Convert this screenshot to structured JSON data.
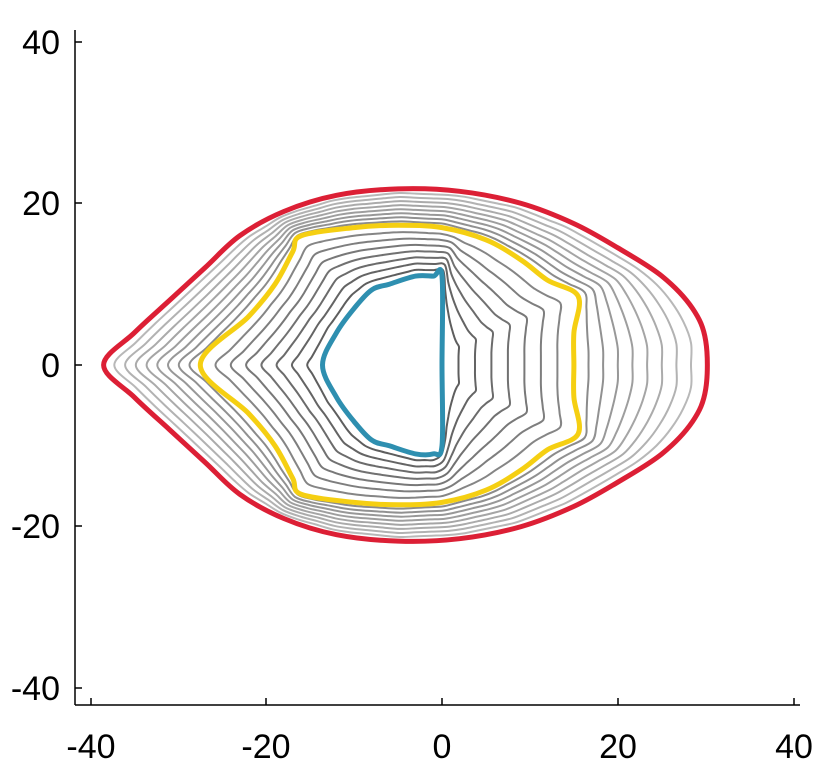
{
  "chart_data": {
    "type": "line",
    "title": "",
    "xlabel": "",
    "ylabel": "",
    "xlim": [
      -40,
      40
    ],
    "ylim": [
      -40,
      40
    ],
    "xticks": [
      -40,
      -20,
      0,
      20,
      40
    ],
    "yticks": [
      -40,
      -20,
      0,
      20,
      40
    ],
    "xtick_labels": [
      "-40",
      "-20",
      "0",
      "20",
      "40"
    ],
    "ytick_labels": [
      "-40",
      "-20",
      "0",
      "20",
      "40"
    ],
    "grid": false,
    "legend": "none",
    "highlighted_series": [
      {
        "color": "#2e8fb0",
        "points": [
          [
            0,
            11
          ],
          [
            0,
            0
          ],
          [
            0,
            -10
          ],
          [
            -1,
            -11
          ],
          [
            -3,
            -11
          ],
          [
            -6,
            -10
          ],
          [
            -8,
            -9.3
          ],
          [
            -10,
            -7
          ],
          [
            -12,
            -4
          ],
          [
            -13.6,
            0
          ],
          [
            -12,
            4
          ],
          [
            -10,
            7
          ],
          [
            -8,
            9.3
          ],
          [
            -6,
            10
          ],
          [
            -3,
            11
          ],
          [
            -1,
            11
          ],
          [
            0,
            11
          ]
        ]
      },
      {
        "color": "#f5cf12",
        "points": [
          [
            -16,
            16
          ],
          [
            -10,
            17
          ],
          [
            -5,
            17.3
          ],
          [
            0,
            17
          ],
          [
            5,
            15.5
          ],
          [
            9,
            13
          ],
          [
            12,
            10.5
          ],
          [
            15.5,
            8.5
          ],
          [
            15,
            4
          ],
          [
            15,
            0
          ],
          [
            15,
            -4
          ],
          [
            15.5,
            -8.5
          ],
          [
            12,
            -10.5
          ],
          [
            9,
            -13
          ],
          [
            5,
            -15.5
          ],
          [
            0,
            -17
          ],
          [
            -5,
            -17.3
          ],
          [
            -10,
            -17
          ],
          [
            -16,
            -16
          ],
          [
            -17,
            -14
          ],
          [
            -19,
            -10
          ],
          [
            -22,
            -6
          ],
          [
            -27.5,
            0
          ],
          [
            -22,
            6
          ],
          [
            -19,
            10
          ],
          [
            -17,
            14
          ],
          [
            -16,
            16
          ]
        ]
      },
      {
        "color": "#dc1f35",
        "points": [
          [
            -38.5,
            0
          ],
          [
            -35,
            4
          ],
          [
            -31,
            8
          ],
          [
            -27,
            12
          ],
          [
            -23,
            16
          ],
          [
            -18,
            19
          ],
          [
            -12,
            21
          ],
          [
            -5,
            21.8
          ],
          [
            2,
            21.5
          ],
          [
            9,
            20
          ],
          [
            15,
            17.5
          ],
          [
            20,
            14.5
          ],
          [
            25,
            11
          ],
          [
            28.5,
            7
          ],
          [
            30,
            3
          ],
          [
            30,
            -3
          ],
          [
            28.5,
            -7
          ],
          [
            25,
            -11
          ],
          [
            20,
            -14.5
          ],
          [
            15,
            -17.5
          ],
          [
            9,
            -20
          ],
          [
            2,
            -21.5
          ],
          [
            -5,
            -21.8
          ],
          [
            -12,
            -21
          ],
          [
            -18,
            -19
          ],
          [
            -23,
            -16
          ],
          [
            -27,
            -12
          ],
          [
            -31,
            -8
          ],
          [
            -35,
            -4
          ],
          [
            -38.5,
            0
          ]
        ]
      }
    ],
    "intermediate_contours": {
      "count": 15,
      "colors": [
        "#5e5e5e",
        "#b8b8b8"
      ]
    }
  }
}
